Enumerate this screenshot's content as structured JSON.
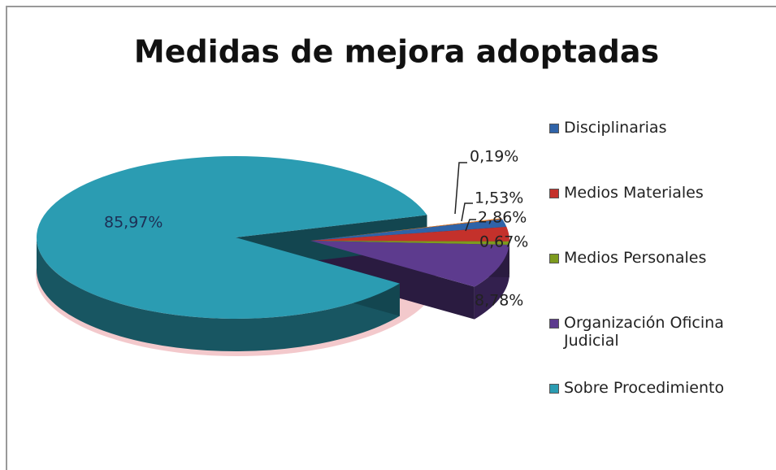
{
  "chart_data": {
    "type": "pie",
    "title": "Medidas de mejora adoptadas",
    "categories": [
      null,
      "Disciplinarias",
      "Medios Materiales",
      "Medios Personales",
      "Organización Oficina Judicial",
      "Sobre Procedimiento"
    ],
    "values": [
      0.19,
      1.53,
      2.86,
      0.67,
      8.78,
      85.97
    ],
    "value_labels": [
      "0,19%",
      "1,53%",
      "2,86%",
      "0,67%",
      "8,78%",
      "85,97%"
    ],
    "colors": [
      "#e07b2a",
      "#2f63a8",
      "#c4312b",
      "#7d9b1e",
      "#5d3b8e",
      "#2b9cb2"
    ],
    "legend": "right"
  }
}
